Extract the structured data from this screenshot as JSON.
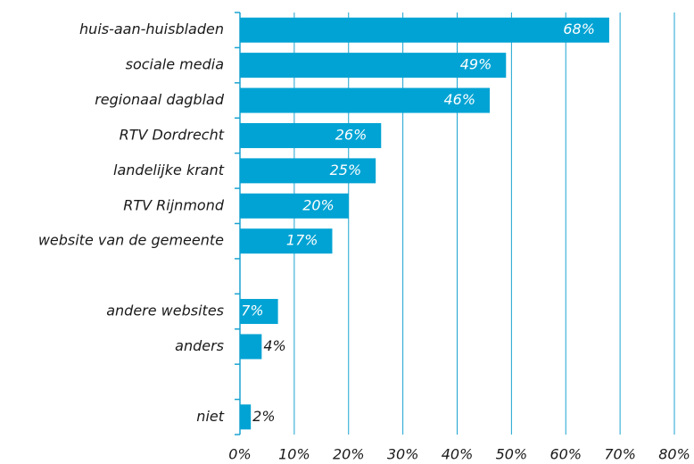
{
  "chart_data": {
    "type": "barh",
    "categories": [
      "huis-aan-huisbladen",
      "sociale media",
      "regionaal dagblad",
      "RTV Dordrecht",
      "landelijke krant",
      "RTV Rijnmond",
      "website van de gemeente",
      null,
      "andere websites",
      "anders",
      null,
      "niet"
    ],
    "values": [
      68,
      49,
      46,
      26,
      25,
      20,
      17,
      null,
      7,
      4,
      null,
      2
    ],
    "value_labels": [
      "68%",
      "49%",
      "46%",
      "26%",
      "25%",
      "20%",
      "17%",
      null,
      "7%",
      "4%",
      null,
      "2%"
    ],
    "color": "#00a3d4",
    "xlim": [
      0,
      80
    ],
    "xticks": [
      {
        "value": 0,
        "label": "0%"
      },
      {
        "value": 10,
        "label": "10%"
      },
      {
        "value": 20,
        "label": "20%"
      },
      {
        "value": 30,
        "label": "30%"
      },
      {
        "value": 40,
        "label": "40%"
      },
      {
        "value": 50,
        "label": "50%"
      },
      {
        "value": 60,
        "label": "60%"
      },
      {
        "value": 70,
        "label": "70%"
      },
      {
        "value": 80,
        "label": "80%"
      }
    ],
    "grid": true
  }
}
